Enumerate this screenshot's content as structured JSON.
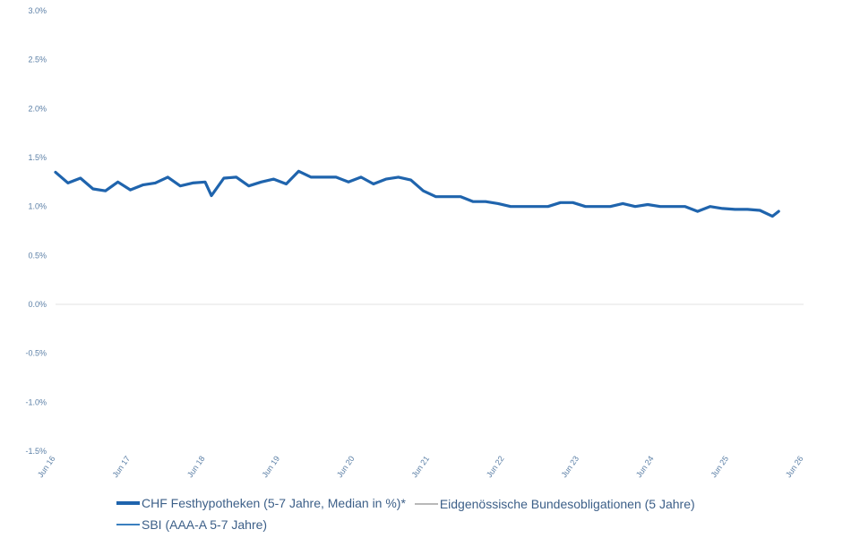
{
  "chart_data": {
    "type": "line",
    "title": "",
    "xlabel": "",
    "ylabel": "",
    "ylim": [
      -1.5,
      3.0
    ],
    "yticks": [
      -1.5,
      -1.0,
      -0.5,
      0.0,
      0.5,
      1.0,
      1.5,
      2.0,
      2.5,
      3.0
    ],
    "ytick_labels": [
      "-1.5%",
      "-1.0%",
      "-0.5%",
      "0.0%",
      "0.5%",
      "1.0%",
      "1.5%",
      "2.0%",
      "2.5%",
      "3.0%"
    ],
    "xticks": [
      "2016-06",
      "2017-06",
      "2018-06",
      "2019-06",
      "2020-06",
      "2021-06",
      "2022-06",
      "2023-06",
      "2024-06",
      "2025-06",
      "2026-06"
    ],
    "xtick_labels": [
      "Jun 16",
      "Jun 17",
      "Jun 18",
      "Jun 19",
      "Jun 20",
      "Jun 21",
      "Jun 22",
      "Jun 23",
      "Jun 24",
      "Jun 25",
      "Jun 26"
    ],
    "zero_line": true,
    "legend_position": "bottom",
    "series": [
      {
        "name": "CHF Festhypotheken (5-7 Jahre, Median in %)*",
        "color": "#1f64ad",
        "width": "thick",
        "points": [
          [
            "2016-06",
            1.35
          ],
          [
            "2016-08",
            1.24
          ],
          [
            "2016-10",
            1.29
          ],
          [
            "2016-12",
            1.18
          ],
          [
            "2017-02",
            1.16
          ],
          [
            "2017-04",
            1.25
          ],
          [
            "2017-06",
            1.17
          ],
          [
            "2017-08",
            1.22
          ],
          [
            "2017-10",
            1.24
          ],
          [
            "2017-12",
            1.3
          ],
          [
            "2018-02",
            1.21
          ],
          [
            "2018-04",
            1.24
          ],
          [
            "2018-06",
            1.25
          ],
          [
            "2018-07",
            1.11
          ],
          [
            "2018-09",
            1.29
          ],
          [
            "2018-11",
            1.3
          ],
          [
            "2019-01",
            1.21
          ],
          [
            "2019-03",
            1.25
          ],
          [
            "2019-05",
            1.28
          ],
          [
            "2019-07",
            1.23
          ],
          [
            "2019-09",
            1.36
          ],
          [
            "2019-11",
            1.3
          ],
          [
            "2020-01",
            1.3
          ],
          [
            "2020-03",
            1.3
          ],
          [
            "2020-05",
            1.25
          ],
          [
            "2020-07",
            1.3
          ],
          [
            "2020-09",
            1.23
          ],
          [
            "2020-11",
            1.28
          ],
          [
            "2021-01",
            1.3
          ],
          [
            "2021-03",
            1.27
          ],
          [
            "2021-05",
            1.16
          ],
          [
            "2021-07",
            1.1
          ],
          [
            "2021-09",
            1.1
          ],
          [
            "2021-11",
            1.1
          ],
          [
            "2022-01",
            1.05
          ],
          [
            "2022-03",
            1.05
          ],
          [
            "2022-05",
            1.03
          ],
          [
            "2022-07",
            1.0
          ],
          [
            "2022-09",
            1.0
          ],
          [
            "2022-11",
            1.0
          ],
          [
            "2023-01",
            1.0
          ],
          [
            "2023-03",
            1.04
          ],
          [
            "2023-05",
            1.04
          ],
          [
            "2023-07",
            1.0
          ],
          [
            "2023-09",
            1.0
          ],
          [
            "2023-11",
            1.0
          ],
          [
            "2024-01",
            1.03
          ],
          [
            "2024-03",
            1.0
          ],
          [
            "2024-05",
            1.02
          ],
          [
            "2024-07",
            1.0
          ],
          [
            "2024-09",
            1.0
          ],
          [
            "2024-11",
            1.0
          ],
          [
            "2025-01",
            0.95
          ],
          [
            "2025-03",
            1.0
          ],
          [
            "2025-05",
            0.98
          ],
          [
            "2025-07",
            0.97
          ],
          [
            "2025-09",
            0.97
          ],
          [
            "2025-11",
            0.96
          ],
          [
            "2026-01",
            0.9
          ],
          [
            "2026-02",
            0.95
          ]
        ]
      },
      {
        "name": "Eidgenössische Bundesobligationen (5 Jahre)",
        "color": "#b8b8b8",
        "width": "thin",
        "points": []
      },
      {
        "name": "SBI (AAA-A 5-7 Jahre)",
        "color": "#3a7fbf",
        "width": "thin",
        "points": []
      }
    ]
  }
}
